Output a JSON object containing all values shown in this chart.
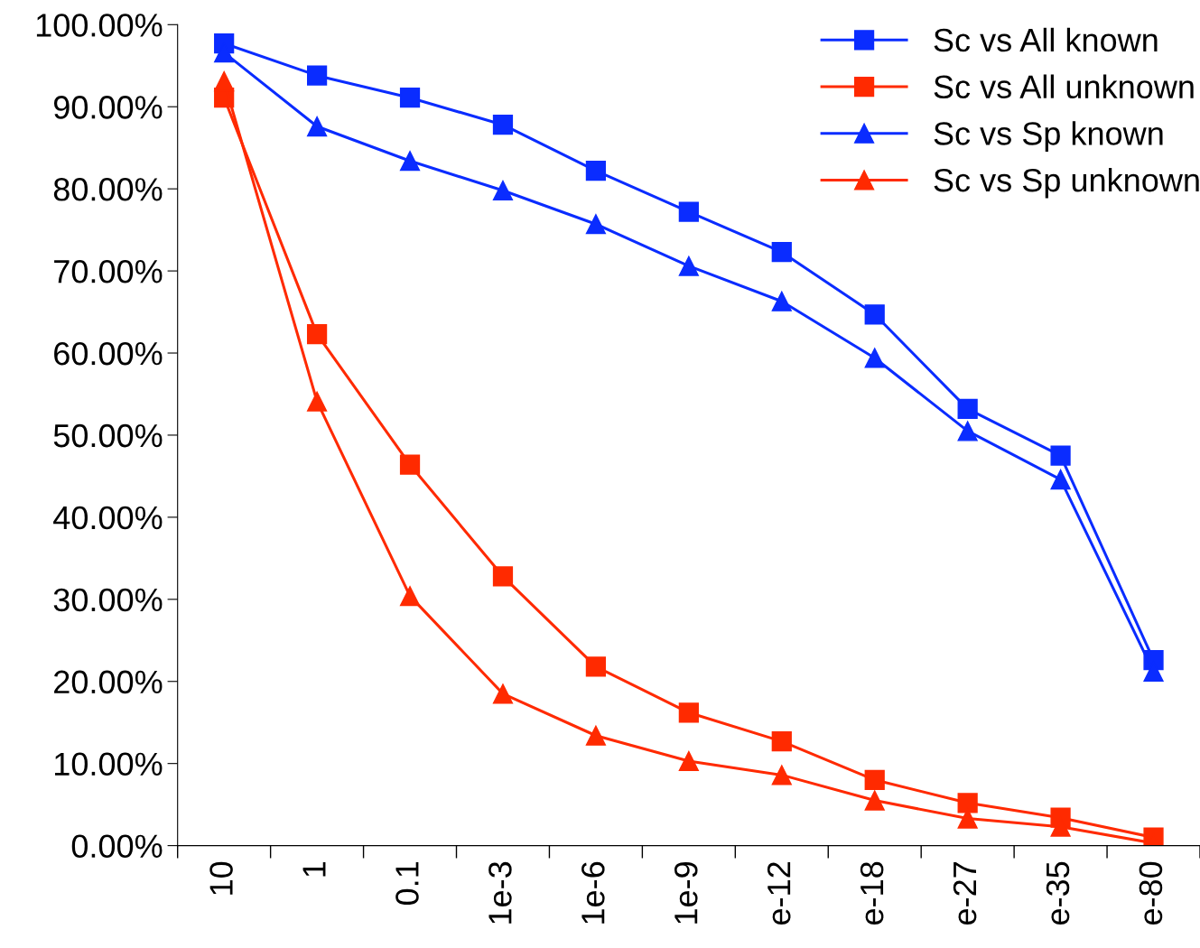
{
  "chart_data": {
    "type": "line",
    "categories": [
      "10",
      "1",
      "0.1",
      "1e-3",
      "1e-6",
      "1e-9",
      "e-12",
      "e-18",
      "e-27",
      "e-35",
      "e-80"
    ],
    "series": [
      {
        "name": "Sc vs All known",
        "color": "#0a2cff",
        "marker": "square",
        "values": [
          97.7,
          93.8,
          91.1,
          87.8,
          82.2,
          77.2,
          72.3,
          64.7,
          53.2,
          47.5,
          22.6
        ]
      },
      {
        "name": "Sc vs All unknown",
        "color": "#ff2a00",
        "marker": "square",
        "values": [
          91.1,
          62.3,
          46.4,
          32.8,
          21.8,
          16.2,
          12.7,
          8.0,
          5.2,
          3.4,
          1.0
        ]
      },
      {
        "name": "Sc vs Sp known",
        "color": "#0a2cff",
        "marker": "triangle",
        "values": [
          96.6,
          87.6,
          83.4,
          79.8,
          75.7,
          70.6,
          66.3,
          59.4,
          50.5,
          44.6,
          21.2
        ]
      },
      {
        "name": "Sc vs Sp unknown",
        "color": "#ff2a00",
        "marker": "triangle",
        "values": [
          93.1,
          54.1,
          30.4,
          18.5,
          13.4,
          10.3,
          8.6,
          5.5,
          3.3,
          2.3,
          0.3
        ]
      }
    ],
    "ylim": [
      0,
      100
    ],
    "yticks": [
      {
        "value": 0,
        "label": "0.00%"
      },
      {
        "value": 10,
        "label": "10.00%"
      },
      {
        "value": 20,
        "label": "20.00%"
      },
      {
        "value": 30,
        "label": "30.00%"
      },
      {
        "value": 40,
        "label": "40.00%"
      },
      {
        "value": 50,
        "label": "50.00%"
      },
      {
        "value": 60,
        "label": "60.00%"
      },
      {
        "value": 70,
        "label": "70.00%"
      },
      {
        "value": 80,
        "label": "80.00%"
      },
      {
        "value": 90,
        "label": "90.00%"
      },
      {
        "value": 100,
        "label": "100.00%"
      }
    ],
    "grid": false,
    "legend": "top right",
    "line_style": "solid"
  }
}
